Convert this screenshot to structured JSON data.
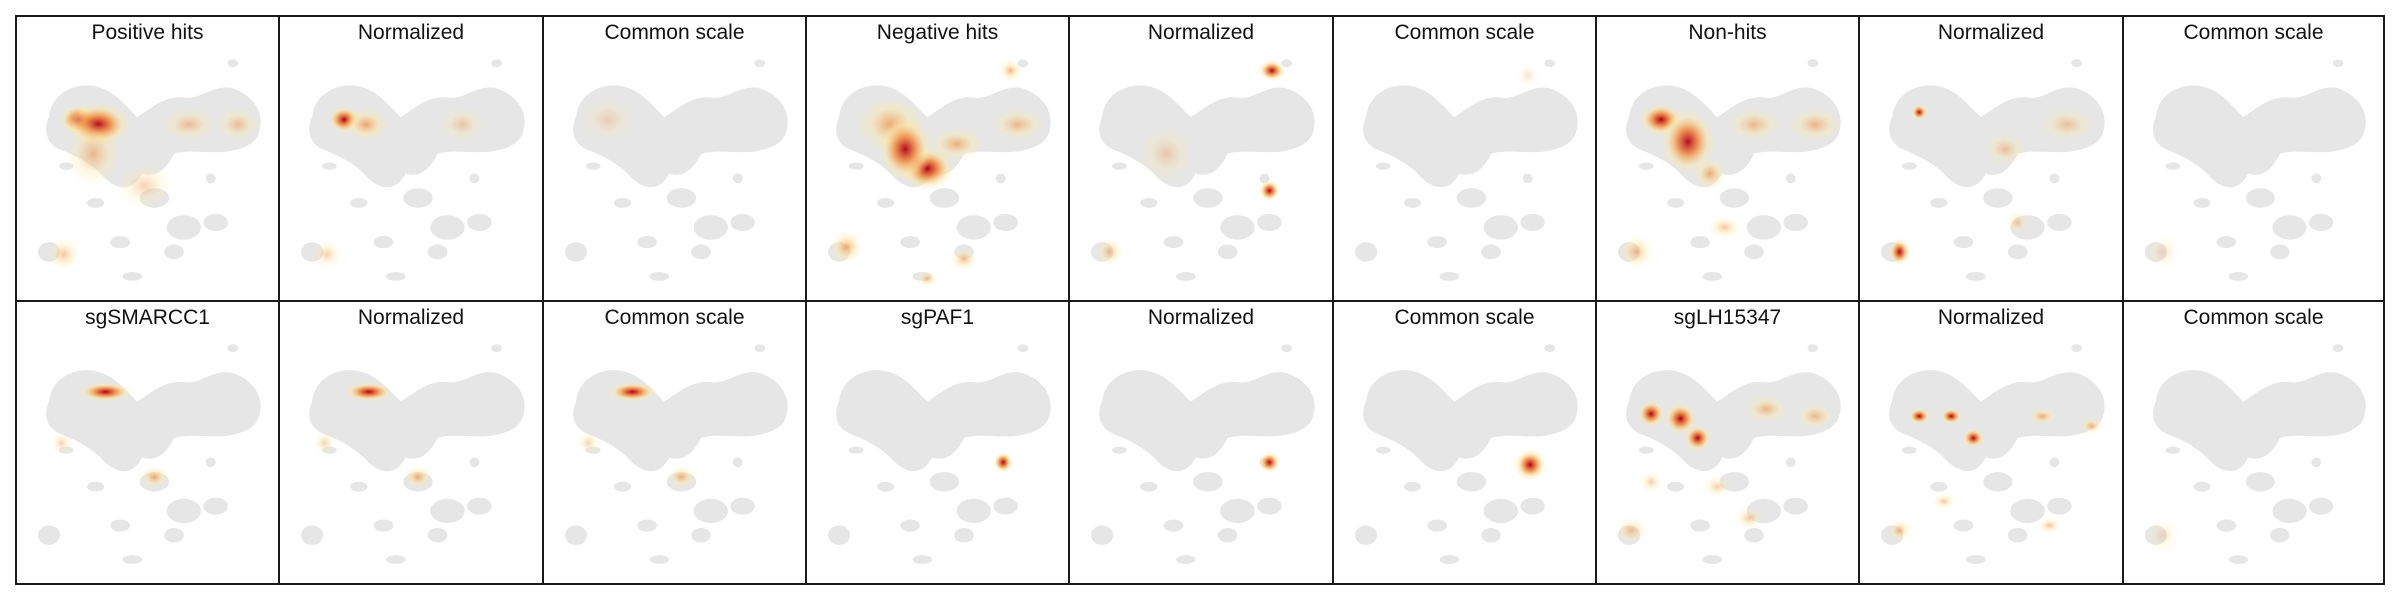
{
  "chart_data": {
    "type": "density-embedding-grid",
    "rows": 2,
    "cols": 9,
    "colorscale": {
      "background": "#e6e6e6",
      "low": "#fde9a6",
      "mid": "#f08a3c",
      "high": "#b30014"
    },
    "panels": [
      {
        "title": "Positive hits",
        "hotspots": [
          {
            "cx": 0.21,
            "cy": 0.28,
            "sx": 0.035,
            "sy": 0.028,
            "w": 1.0
          },
          {
            "cx": 0.29,
            "cy": 0.3,
            "sx": 0.06,
            "sy": 0.04,
            "w": 0.75
          },
          {
            "cx": 0.27,
            "cy": 0.42,
            "sx": 0.05,
            "sy": 0.06,
            "w": 0.35
          },
          {
            "cx": 0.66,
            "cy": 0.3,
            "sx": 0.05,
            "sy": 0.03,
            "w": 0.3
          },
          {
            "cx": 0.86,
            "cy": 0.3,
            "sx": 0.04,
            "sy": 0.03,
            "w": 0.3
          },
          {
            "cx": 0.15,
            "cy": 0.83,
            "sx": 0.03,
            "sy": 0.03,
            "w": 0.3
          },
          {
            "cx": 0.48,
            "cy": 0.55,
            "sx": 0.05,
            "sy": 0.04,
            "w": 0.2
          }
        ]
      },
      {
        "title": "Normalized",
        "hotspots": [
          {
            "cx": 0.22,
            "cy": 0.28,
            "sx": 0.03,
            "sy": 0.025,
            "w": 1.0
          },
          {
            "cx": 0.31,
            "cy": 0.3,
            "sx": 0.04,
            "sy": 0.03,
            "w": 0.55
          },
          {
            "cx": 0.15,
            "cy": 0.83,
            "sx": 0.025,
            "sy": 0.025,
            "w": 0.25
          },
          {
            "cx": 0.7,
            "cy": 0.3,
            "sx": 0.04,
            "sy": 0.03,
            "w": 0.2
          }
        ]
      },
      {
        "title": "Common scale",
        "hotspots": [
          {
            "cx": 0.22,
            "cy": 0.28,
            "sx": 0.05,
            "sy": 0.04,
            "w": 0.08
          }
        ]
      },
      {
        "title": "Negative hits",
        "hotspots": [
          {
            "cx": 0.3,
            "cy": 0.3,
            "sx": 0.06,
            "sy": 0.05,
            "w": 0.55
          },
          {
            "cx": 0.45,
            "cy": 0.48,
            "sx": 0.05,
            "sy": 0.04,
            "w": 1.0
          },
          {
            "cx": 0.36,
            "cy": 0.4,
            "sx": 0.05,
            "sy": 0.06,
            "w": 0.7
          },
          {
            "cx": 0.57,
            "cy": 0.38,
            "sx": 0.05,
            "sy": 0.03,
            "w": 0.45
          },
          {
            "cx": 0.82,
            "cy": 0.3,
            "sx": 0.05,
            "sy": 0.03,
            "w": 0.35
          },
          {
            "cx": 0.79,
            "cy": 0.08,
            "sx": 0.02,
            "sy": 0.02,
            "w": 0.45
          },
          {
            "cx": 0.12,
            "cy": 0.8,
            "sx": 0.03,
            "sy": 0.03,
            "w": 0.55
          },
          {
            "cx": 0.6,
            "cy": 0.85,
            "sx": 0.025,
            "sy": 0.02,
            "w": 0.4
          },
          {
            "cx": 0.45,
            "cy": 0.93,
            "sx": 0.02,
            "sy": 0.015,
            "w": 0.35
          }
        ]
      },
      {
        "title": "Normalized",
        "hotspots": [
          {
            "cx": 0.78,
            "cy": 0.08,
            "sx": 0.025,
            "sy": 0.02,
            "w": 1.0
          },
          {
            "cx": 0.77,
            "cy": 0.57,
            "sx": 0.02,
            "sy": 0.02,
            "w": 0.9
          },
          {
            "cx": 0.12,
            "cy": 0.82,
            "sx": 0.025,
            "sy": 0.025,
            "w": 0.35
          },
          {
            "cx": 0.35,
            "cy": 0.42,
            "sx": 0.05,
            "sy": 0.05,
            "w": 0.15
          }
        ]
      },
      {
        "title": "Common scale",
        "hotspots": [
          {
            "cx": 0.75,
            "cy": 0.1,
            "sx": 0.02,
            "sy": 0.02,
            "w": 0.06
          }
        ]
      },
      {
        "title": "Non-hits",
        "hotspots": [
          {
            "cx": 0.22,
            "cy": 0.28,
            "sx": 0.04,
            "sy": 0.03,
            "w": 0.95
          },
          {
            "cx": 0.33,
            "cy": 0.37,
            "sx": 0.05,
            "sy": 0.06,
            "w": 0.7
          },
          {
            "cx": 0.42,
            "cy": 0.5,
            "sx": 0.03,
            "sy": 0.03,
            "w": 0.5
          },
          {
            "cx": 0.6,
            "cy": 0.3,
            "sx": 0.05,
            "sy": 0.03,
            "w": 0.35
          },
          {
            "cx": 0.85,
            "cy": 0.3,
            "sx": 0.05,
            "sy": 0.03,
            "w": 0.4
          },
          {
            "cx": 0.12,
            "cy": 0.82,
            "sx": 0.03,
            "sy": 0.03,
            "w": 0.4
          },
          {
            "cx": 0.48,
            "cy": 0.72,
            "sx": 0.03,
            "sy": 0.02,
            "w": 0.3
          }
        ]
      },
      {
        "title": "Normalized",
        "hotspots": [
          {
            "cx": 0.2,
            "cy": 0.25,
            "sx": 0.015,
            "sy": 0.015,
            "w": 0.85
          },
          {
            "cx": 0.12,
            "cy": 0.82,
            "sx": 0.02,
            "sy": 0.025,
            "w": 1.0
          },
          {
            "cx": 0.55,
            "cy": 0.4,
            "sx": 0.04,
            "sy": 0.03,
            "w": 0.25
          },
          {
            "cx": 0.8,
            "cy": 0.3,
            "sx": 0.05,
            "sy": 0.03,
            "w": 0.25
          },
          {
            "cx": 0.6,
            "cy": 0.7,
            "sx": 0.02,
            "sy": 0.02,
            "w": 0.25
          }
        ]
      },
      {
        "title": "Common scale",
        "hotspots": [
          {
            "cx": 0.12,
            "cy": 0.82,
            "sx": 0.03,
            "sy": 0.03,
            "w": 0.05
          }
        ]
      },
      {
        "title": "sgSMARCC1",
        "hotspots": [
          {
            "cx": 0.32,
            "cy": 0.23,
            "sx": 0.05,
            "sy": 0.018,
            "w": 1.0
          },
          {
            "cx": 0.52,
            "cy": 0.58,
            "sx": 0.025,
            "sy": 0.02,
            "w": 0.55
          },
          {
            "cx": 0.14,
            "cy": 0.44,
            "sx": 0.02,
            "sy": 0.02,
            "w": 0.2
          }
        ]
      },
      {
        "title": "Normalized",
        "hotspots": [
          {
            "cx": 0.32,
            "cy": 0.23,
            "sx": 0.045,
            "sy": 0.018,
            "w": 0.95
          },
          {
            "cx": 0.52,
            "cy": 0.58,
            "sx": 0.025,
            "sy": 0.02,
            "w": 0.5
          },
          {
            "cx": 0.14,
            "cy": 0.44,
            "sx": 0.02,
            "sy": 0.02,
            "w": 0.2
          }
        ]
      },
      {
        "title": "Common scale",
        "hotspots": [
          {
            "cx": 0.32,
            "cy": 0.23,
            "sx": 0.045,
            "sy": 0.018,
            "w": 0.9
          },
          {
            "cx": 0.52,
            "cy": 0.58,
            "sx": 0.025,
            "sy": 0.02,
            "w": 0.45
          },
          {
            "cx": 0.14,
            "cy": 0.44,
            "sx": 0.02,
            "sy": 0.02,
            "w": 0.2
          }
        ]
      },
      {
        "title": "sgPAF1",
        "hotspots": [
          {
            "cx": 0.76,
            "cy": 0.52,
            "sx": 0.018,
            "sy": 0.02,
            "w": 1.0
          }
        ]
      },
      {
        "title": "Normalized",
        "hotspots": [
          {
            "cx": 0.77,
            "cy": 0.52,
            "sx": 0.02,
            "sy": 0.02,
            "w": 0.95
          }
        ]
      },
      {
        "title": "Common scale",
        "hotspots": [
          {
            "cx": 0.76,
            "cy": 0.53,
            "sx": 0.03,
            "sy": 0.03,
            "w": 1.0
          }
        ]
      },
      {
        "title": "sgLH15347",
        "hotspots": [
          {
            "cx": 0.18,
            "cy": 0.32,
            "sx": 0.025,
            "sy": 0.025,
            "w": 0.9
          },
          {
            "cx": 0.3,
            "cy": 0.34,
            "sx": 0.03,
            "sy": 0.03,
            "w": 0.85
          },
          {
            "cx": 0.37,
            "cy": 0.42,
            "sx": 0.025,
            "sy": 0.025,
            "w": 0.8
          },
          {
            "cx": 0.65,
            "cy": 0.3,
            "sx": 0.04,
            "sy": 0.025,
            "w": 0.4
          },
          {
            "cx": 0.85,
            "cy": 0.33,
            "sx": 0.035,
            "sy": 0.025,
            "w": 0.35
          },
          {
            "cx": 0.18,
            "cy": 0.6,
            "sx": 0.02,
            "sy": 0.02,
            "w": 0.25
          },
          {
            "cx": 0.45,
            "cy": 0.62,
            "sx": 0.025,
            "sy": 0.02,
            "w": 0.25
          },
          {
            "cx": 0.58,
            "cy": 0.75,
            "sx": 0.025,
            "sy": 0.02,
            "w": 0.3
          },
          {
            "cx": 0.1,
            "cy": 0.8,
            "sx": 0.03,
            "sy": 0.025,
            "w": 0.3
          }
        ]
      },
      {
        "title": "Normalized",
        "hotspots": [
          {
            "cx": 0.2,
            "cy": 0.33,
            "sx": 0.02,
            "sy": 0.015,
            "w": 0.9
          },
          {
            "cx": 0.33,
            "cy": 0.33,
            "sx": 0.02,
            "sy": 0.015,
            "w": 0.85
          },
          {
            "cx": 0.42,
            "cy": 0.42,
            "sx": 0.02,
            "sy": 0.018,
            "w": 0.9
          },
          {
            "cx": 0.7,
            "cy": 0.33,
            "sx": 0.025,
            "sy": 0.015,
            "w": 0.5
          },
          {
            "cx": 0.9,
            "cy": 0.37,
            "sx": 0.02,
            "sy": 0.015,
            "w": 0.45
          },
          {
            "cx": 0.12,
            "cy": 0.8,
            "sx": 0.02,
            "sy": 0.02,
            "w": 0.45
          },
          {
            "cx": 0.3,
            "cy": 0.68,
            "sx": 0.02,
            "sy": 0.015,
            "w": 0.3
          },
          {
            "cx": 0.73,
            "cy": 0.78,
            "sx": 0.02,
            "sy": 0.015,
            "w": 0.35
          }
        ]
      },
      {
        "title": "Common scale",
        "hotspots": [
          {
            "cx": 0.12,
            "cy": 0.82,
            "sx": 0.03,
            "sy": 0.03,
            "w": 0.05
          }
        ]
      }
    ]
  }
}
